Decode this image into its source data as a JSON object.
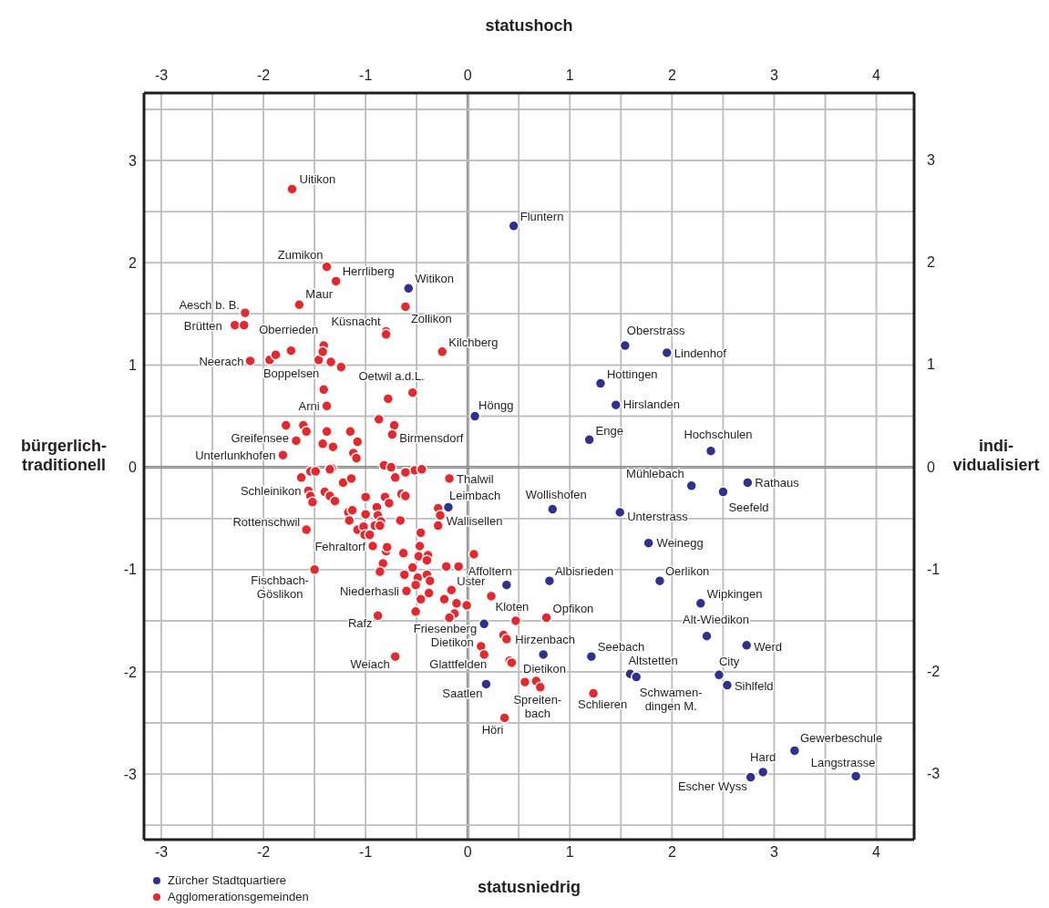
{
  "chart_data": {
    "type": "scatter",
    "xlabel": "statusniedrig",
    "x2label": "statushoch",
    "ylabel": "bürgerlich-\ntraditionell",
    "y2label": "indi-\nvidualisiert",
    "xlim": [
      -3.17,
      4.37
    ],
    "xticks": [
      -3,
      {
        "value": -2.5,
        "label": null
      },
      -2,
      {
        "value": -1.5,
        "label": null
      },
      -1,
      {
        "value": -0.5,
        "label": null
      },
      0,
      {
        "value": 0.5,
        "label": null
      },
      1,
      {
        "value": 1.5,
        "label": null
      },
      2,
      {
        "value": 2.5,
        "label": null
      },
      3,
      {
        "value": 3.5,
        "label": null
      },
      4
    ],
    "x2lim": [
      -3.17,
      4.37
    ],
    "x2ticks": [
      -3,
      {
        "value": -2.5,
        "label": null
      },
      -2,
      {
        "value": -1.5,
        "label": null
      },
      -1,
      {
        "value": -0.5,
        "label": null
      },
      0,
      {
        "value": 0.5,
        "label": null
      },
      1,
      {
        "value": 1.5,
        "label": null
      },
      2,
      {
        "value": 2.5,
        "label": null
      },
      3,
      {
        "value": 3.5,
        "label": null
      },
      4
    ],
    "ylim": [
      -3.64,
      3.66
    ],
    "yticks": [
      {
        "value": -3.5,
        "label": null
      },
      -3,
      {
        "value": -2.5,
        "label": null
      },
      -2,
      {
        "value": -1.5,
        "label": null
      },
      -1,
      {
        "value": -0.5,
        "label": null
      },
      0,
      {
        "value": 0.5,
        "label": null
      },
      1,
      {
        "value": 1.5,
        "label": null
      },
      2,
      {
        "value": 2.5,
        "label": null
      },
      3,
      {
        "value": 3.5,
        "label": null
      }
    ],
    "y2lim": [
      -3.64,
      3.66
    ],
    "y2ticks": [
      {
        "value": -3.5,
        "label": null
      },
      -3,
      {
        "value": -2.5,
        "label": null
      },
      -2,
      {
        "value": -1.5,
        "label": null
      },
      -1,
      {
        "value": -0.5,
        "label": null
      },
      0,
      {
        "value": 0.5,
        "label": null
      },
      1,
      {
        "value": 1.5,
        "label": null
      },
      2,
      {
        "value": 2.5,
        "label": null
      },
      3,
      {
        "value": 3.5,
        "label": null
      }
    ],
    "grid": true,
    "marker": "circle",
    "legend": "bottom left",
    "series": [
      {
        "name": "Zürcher Stadtquartiere",
        "color": "#2e3192",
        "x": [
          0.45,
          -0.58,
          1.54,
          1.95,
          1.3,
          1.45,
          0.07,
          1.19,
          2.38,
          2.19,
          2.74,
          2.5,
          -0.19,
          0.83,
          1.49,
          1.77,
          0.38,
          0.8,
          1.88,
          2.28,
          0.16,
          2.34,
          2.73,
          0.74,
          1.21,
          1.59,
          1.65,
          2.46,
          2.54,
          0.18,
          3.2,
          2.89,
          2.77,
          3.8
        ],
        "values": [
          2.36,
          1.75,
          1.19,
          1.12,
          0.82,
          0.61,
          0.5,
          0.27,
          0.16,
          -0.18,
          -0.15,
          -0.24,
          -0.39,
          -0.41,
          -0.44,
          -0.74,
          -1.15,
          -1.11,
          -1.11,
          -1.33,
          -1.53,
          -1.65,
          -1.74,
          -1.83,
          -1.85,
          -2.02,
          -2.05,
          -2.03,
          -2.13,
          -2.12,
          -2.77,
          -2.98,
          -3.03,
          -3.02
        ]
      },
      {
        "name": "Agglomerationsgemeinden",
        "color": "#e8262b",
        "x": [
          -1.72,
          -1.38,
          -1.29,
          -1.65,
          -2.18,
          -2.28,
          -2.19,
          -0.61,
          -0.8,
          -0.8,
          -0.25,
          -2.13,
          -1.94,
          -1.88,
          -1.73,
          -1.46,
          -1.34,
          -1.24,
          -1.41,
          -1.42,
          -0.78,
          -0.54,
          -1.41,
          -1.38,
          -0.87,
          -0.72,
          -0.74,
          -1.78,
          -1.61,
          -1.58,
          -1.38,
          -1.15,
          -1.68,
          -1.42,
          -1.32,
          -1.08,
          -1.12,
          -1.09,
          -1.81,
          -0.82,
          -0.75,
          -0.52,
          -0.45,
          -0.61,
          -1.33,
          -1.35,
          -1.54,
          -1.49,
          -1.63,
          -1.22,
          -1.14,
          -0.71,
          -0.18,
          -1.56,
          -1.54,
          -1.52,
          -1.4,
          -1.35,
          -1.3,
          -1.0,
          -0.81,
          -0.77,
          -0.65,
          -0.61,
          -0.89,
          -1.17,
          -1.13,
          -1.0,
          -0.88,
          -1.16,
          -0.85,
          -0.66,
          -0.29,
          -0.27,
          -0.29,
          -1.58,
          -1.08,
          -1.02,
          -0.91,
          -0.86,
          -1.01,
          -0.96,
          -0.46,
          -0.93,
          -0.8,
          -0.79,
          -0.63,
          -0.47,
          -0.48,
          -0.39,
          -0.4,
          0.06,
          -0.83,
          -0.86,
          -0.54,
          -0.21,
          -0.09,
          -1.5,
          -0.62,
          -0.49,
          -0.4,
          -0.37,
          -0.51,
          -0.6,
          -0.38,
          -0.46,
          -0.16,
          -0.23,
          -0.11,
          -0.01,
          -0.51,
          -0.13,
          -0.18,
          -0.88,
          0.23,
          -0.71,
          0.36,
          0.47,
          0.77,
          0.35,
          0.38,
          0.13,
          0.16,
          0.41,
          0.43,
          0.56,
          0.67,
          0.71,
          1.23
        ],
        "values": [
          2.72,
          1.96,
          1.82,
          1.59,
          1.51,
          1.39,
          1.39,
          1.57,
          1.33,
          1.3,
          1.13,
          1.04,
          1.05,
          1.1,
          1.14,
          1.05,
          1.03,
          0.98,
          1.19,
          1.13,
          0.67,
          0.73,
          0.76,
          0.6,
          0.47,
          0.41,
          0.32,
          0.41,
          0.41,
          0.35,
          0.35,
          0.35,
          0.26,
          0.23,
          0.2,
          0.25,
          0.14,
          0.09,
          0.12,
          0.02,
          0.0,
          -0.03,
          -0.02,
          -0.05,
          -0.01,
          -0.02,
          -0.04,
          -0.04,
          -0.1,
          -0.15,
          -0.11,
          -0.1,
          -0.11,
          -0.23,
          -0.28,
          -0.34,
          -0.24,
          -0.28,
          -0.33,
          -0.29,
          -0.29,
          -0.35,
          -0.26,
          -0.28,
          -0.39,
          -0.44,
          -0.42,
          -0.46,
          -0.47,
          -0.52,
          -0.53,
          -0.52,
          -0.4,
          -0.47,
          -0.57,
          -0.61,
          -0.61,
          -0.58,
          -0.57,
          -0.57,
          -0.66,
          -0.66,
          -0.64,
          -0.77,
          -0.82,
          -0.78,
          -0.84,
          -0.77,
          -0.87,
          -0.86,
          -0.91,
          -0.85,
          -0.94,
          -1.02,
          -0.98,
          -0.97,
          -0.97,
          -1.0,
          -1.05,
          -1.08,
          -1.05,
          -1.11,
          -1.15,
          -1.21,
          -1.23,
          -1.29,
          -1.2,
          -1.29,
          -1.33,
          -1.35,
          -1.41,
          -1.43,
          -1.47,
          -1.45,
          -1.26,
          -1.85,
          -2.45,
          -1.5,
          -1.47,
          -1.64,
          -1.68,
          -1.75,
          -1.83,
          -1.89,
          -1.91,
          -2.1,
          -2.09,
          -2.15,
          -2.21
        ]
      }
    ],
    "annotations": [
      {
        "text": "Uitikon",
        "x": -1.72,
        "y": 2.72
      },
      {
        "text": "Fluntern",
        "x": 0.45,
        "y": 2.36
      },
      {
        "text": "Zumikon",
        "x": -1.38,
        "y": 1.96
      },
      {
        "text": "Herrliberg",
        "x": -1.29,
        "y": 1.82
      },
      {
        "text": "Witikon",
        "x": -0.58,
        "y": 1.75
      },
      {
        "text": "Maur",
        "x": -1.65,
        "y": 1.59
      },
      {
        "text": "Aesch b. B.",
        "x": -2.18,
        "y": 1.51
      },
      {
        "text": "Brütten",
        "x": -2.28,
        "y": 1.39
      },
      {
        "text": "Zollikon",
        "x": -0.61,
        "y": 1.57
      },
      {
        "text": "Küsnacht",
        "x": -0.8,
        "y": 1.33
      },
      {
        "text": "Oberrieden",
        "x": -1.41,
        "y": 1.19
      },
      {
        "text": "Kilchberg",
        "x": -0.25,
        "y": 1.13
      },
      {
        "text": "Neerach",
        "x": -2.13,
        "y": 1.04
      },
      {
        "text": "Boppelsen",
        "x": -1.46,
        "y": 1.05
      },
      {
        "text": "Oetwil a.d.L.",
        "x": -0.54,
        "y": 0.73
      },
      {
        "text": "Arni",
        "x": -1.38,
        "y": 0.6
      },
      {
        "text": "Greifensee",
        "x": -1.68,
        "y": 0.26
      },
      {
        "text": "Unterlunkhofen",
        "x": -1.81,
        "y": 0.12
      },
      {
        "text": "Birmensdorf",
        "x": -0.74,
        "y": 0.32
      },
      {
        "text": "Höngg",
        "x": 0.07,
        "y": 0.5
      },
      {
        "text": "Oberstrass",
        "x": 1.54,
        "y": 1.19
      },
      {
        "text": "Lindenhof",
        "x": 1.95,
        "y": 1.12
      },
      {
        "text": "Hottingen",
        "x": 1.3,
        "y": 0.82
      },
      {
        "text": "Hirslanden",
        "x": 1.45,
        "y": 0.61
      },
      {
        "text": "Enge",
        "x": 1.19,
        "y": 0.27
      },
      {
        "text": "Hochschulen",
        "x": 2.38,
        "y": 0.16
      },
      {
        "text": "Mühlebach",
        "x": 2.19,
        "y": -0.18
      },
      {
        "text": "Rathaus",
        "x": 2.74,
        "y": -0.15
      },
      {
        "text": "Seefeld",
        "x": 2.5,
        "y": -0.24
      },
      {
        "text": "Thalwil",
        "x": -0.18,
        "y": -0.11
      },
      {
        "text": "Schleinikon",
        "x": -1.56,
        "y": -0.23
      },
      {
        "text": "Leimbach",
        "x": -0.19,
        "y": -0.39
      },
      {
        "text": "Wollishofen",
        "x": 0.83,
        "y": -0.41
      },
      {
        "text": "Unterstrass",
        "x": 1.49,
        "y": -0.44
      },
      {
        "text": "Wallisellen",
        "x": -0.29,
        "y": -0.57
      },
      {
        "text": "Rottenschwil",
        "x": -1.58,
        "y": -0.61
      },
      {
        "text": "Weinegg",
        "x": 1.77,
        "y": -0.74
      },
      {
        "text": "Fehraltorf",
        "x": -0.93,
        "y": -0.77
      },
      {
        "text": "Affoltern",
        "x": 0.38,
        "y": -1.15
      },
      {
        "text": "Albisrieden",
        "x": 0.8,
        "y": -1.11
      },
      {
        "text": "Oerlikon",
        "x": 1.88,
        "y": -1.11
      },
      {
        "text": "Fischbach-\nGöslikon",
        "x": -1.5,
        "y": -1.0
      },
      {
        "text": "Uster",
        "x": -0.16,
        "y": -1.2
      },
      {
        "text": "Wipkingen",
        "x": 2.28,
        "y": -1.33
      },
      {
        "text": "Niederhasli",
        "x": -0.6,
        "y": -1.21
      },
      {
        "text": "Kloten",
        "x": 0.47,
        "y": -1.5
      },
      {
        "text": "Opfikon",
        "x": 0.77,
        "y": -1.47
      },
      {
        "text": "Friesenberg",
        "x": 0.16,
        "y": -1.53
      },
      {
        "text": "Rafz",
        "x": -0.88,
        "y": -1.45
      },
      {
        "text": "Alt-Wiedikon",
        "x": 2.34,
        "y": -1.65
      },
      {
        "text": "Dietikon",
        "x": 0.13,
        "y": -1.75
      },
      {
        "text": "Hirzenbach",
        "x": 0.74,
        "y": -1.83
      },
      {
        "text": "Werd",
        "x": 2.73,
        "y": -1.74
      },
      {
        "text": "Seebach",
        "x": 1.21,
        "y": -1.85
      },
      {
        "text": "Weiach",
        "x": -0.71,
        "y": -1.85
      },
      {
        "text": "Glattfelden",
        "x": 0.16,
        "y": -1.83
      },
      {
        "text": "Altstetten",
        "x": 1.59,
        "y": -2.02
      },
      {
        "text": "City",
        "x": 2.46,
        "y": -2.03
      },
      {
        "text": "Dietikon",
        "x": 0.56,
        "y": -2.1
      },
      {
        "text": "Sihlfeld",
        "x": 2.54,
        "y": -2.13
      },
      {
        "text": "Saatlen",
        "x": 0.18,
        "y": -2.12
      },
      {
        "text": "Spreiten-\nbach",
        "x": 0.71,
        "y": -2.15
      },
      {
        "text": "Schlieren",
        "x": 1.23,
        "y": -2.21
      },
      {
        "text": "Schwamen-\ndingen M.",
        "x": 1.65,
        "y": -2.05
      },
      {
        "text": "Höri",
        "x": 0.36,
        "y": -2.45
      },
      {
        "text": "Gewerbeschule",
        "x": 3.2,
        "y": -2.77
      },
      {
        "text": "Hard",
        "x": 2.89,
        "y": -2.98
      },
      {
        "text": "Langstrasse",
        "x": 3.8,
        "y": -3.02
      },
      {
        "text": "Escher Wyss",
        "x": 2.77,
        "y": -3.03
      }
    ]
  }
}
